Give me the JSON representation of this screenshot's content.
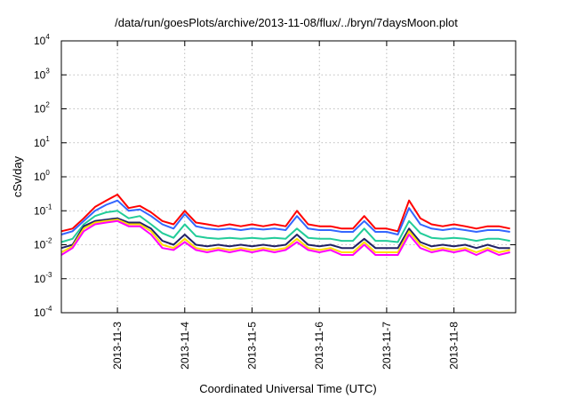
{
  "chart_data": {
    "type": "line",
    "title": "/data/run/goesPlots/archive/2013-11-08/flux/../bryn/7daysMoon.plot",
    "xlabel": "Coordinated Universal Time (UTC)",
    "ylabel": "cSv/day",
    "yscale": "log",
    "ylim": [
      0.0001,
      10000
    ],
    "y_ticks": [
      {
        "base": "10",
        "exp": "4",
        "value": 10000
      },
      {
        "base": "10",
        "exp": "3",
        "value": 1000
      },
      {
        "base": "10",
        "exp": "2",
        "value": 100
      },
      {
        "base": "10",
        "exp": "1",
        "value": 10
      },
      {
        "base": "10",
        "exp": "0",
        "value": 1
      },
      {
        "base": "10",
        "exp": "-1",
        "value": 0.1
      },
      {
        "base": "10",
        "exp": "-2",
        "value": 0.01
      },
      {
        "base": "10",
        "exp": "-3",
        "value": 0.001
      },
      {
        "base": "10",
        "exp": "-4",
        "value": 0.0001
      }
    ],
    "xlim": [
      "2013-11-02T04:00",
      "2013-11-08T22:00"
    ],
    "x_ticks": [
      {
        "label": "2013-11-3",
        "value": "2013-11-03T00:00"
      },
      {
        "label": "2013-11-4",
        "value": "2013-11-04T00:00"
      },
      {
        "label": "2013-11-5",
        "value": "2013-11-05T00:00"
      },
      {
        "label": "2013-11-6",
        "value": "2013-11-06T00:00"
      },
      {
        "label": "2013-11-7",
        "value": "2013-11-07T00:00"
      },
      {
        "label": "2013-11-8",
        "value": "2013-11-08T00:00"
      }
    ],
    "grid": true,
    "legend": "none",
    "x": [
      "2013-11-02T04:00",
      "2013-11-02T08:00",
      "2013-11-02T12:00",
      "2013-11-02T16:00",
      "2013-11-02T20:00",
      "2013-11-03T00:00",
      "2013-11-03T04:00",
      "2013-11-03T08:00",
      "2013-11-03T12:00",
      "2013-11-03T16:00",
      "2013-11-03T20:00",
      "2013-11-04T00:00",
      "2013-11-04T04:00",
      "2013-11-04T08:00",
      "2013-11-04T12:00",
      "2013-11-04T16:00",
      "2013-11-04T20:00",
      "2013-11-05T00:00",
      "2013-11-05T04:00",
      "2013-11-05T08:00",
      "2013-11-05T12:00",
      "2013-11-05T16:00",
      "2013-11-05T20:00",
      "2013-11-06T00:00",
      "2013-11-06T04:00",
      "2013-11-06T08:00",
      "2013-11-06T12:00",
      "2013-11-06T16:00",
      "2013-11-06T20:00",
      "2013-11-07T00:00",
      "2013-11-07T04:00",
      "2013-11-07T08:00",
      "2013-11-07T12:00",
      "2013-11-07T16:00",
      "2013-11-07T20:00",
      "2013-11-08T00:00",
      "2013-11-08T04:00",
      "2013-11-08T08:00",
      "2013-11-08T12:00",
      "2013-11-08T16:00",
      "2013-11-08T20:00"
    ],
    "series": [
      {
        "color": "#ff0000",
        "values": [
          0.025,
          0.03,
          0.06,
          0.13,
          0.2,
          0.3,
          0.12,
          0.14,
          0.09,
          0.05,
          0.04,
          0.1,
          0.045,
          0.04,
          0.035,
          0.04,
          0.035,
          0.04,
          0.035,
          0.04,
          0.035,
          0.1,
          0.04,
          0.035,
          0.035,
          0.03,
          0.03,
          0.07,
          0.03,
          0.03,
          0.025,
          0.2,
          0.06,
          0.04,
          0.035,
          0.04,
          0.035,
          0.03,
          0.035,
          0.035,
          0.03
        ]
      },
      {
        "color": "#3366ff",
        "values": [
          0.02,
          0.025,
          0.05,
          0.1,
          0.15,
          0.2,
          0.1,
          0.11,
          0.07,
          0.04,
          0.03,
          0.08,
          0.035,
          0.03,
          0.028,
          0.03,
          0.027,
          0.03,
          0.028,
          0.03,
          0.027,
          0.07,
          0.03,
          0.027,
          0.027,
          0.024,
          0.024,
          0.05,
          0.024,
          0.024,
          0.02,
          0.12,
          0.04,
          0.03,
          0.027,
          0.03,
          0.027,
          0.024,
          0.027,
          0.027,
          0.024
        ]
      },
      {
        "color": "#22cc99",
        "values": [
          0.012,
          0.015,
          0.04,
          0.07,
          0.09,
          0.1,
          0.06,
          0.07,
          0.04,
          0.022,
          0.016,
          0.04,
          0.018,
          0.016,
          0.015,
          0.016,
          0.015,
          0.016,
          0.015,
          0.016,
          0.015,
          0.03,
          0.016,
          0.015,
          0.015,
          0.013,
          0.013,
          0.03,
          0.013,
          0.013,
          0.012,
          0.05,
          0.022,
          0.016,
          0.015,
          0.016,
          0.015,
          0.013,
          0.015,
          0.015,
          0.013
        ]
      },
      {
        "color": "#222266",
        "values": [
          0.008,
          0.01,
          0.035,
          0.05,
          0.055,
          0.06,
          0.045,
          0.045,
          0.03,
          0.013,
          0.01,
          0.02,
          0.01,
          0.009,
          0.01,
          0.009,
          0.01,
          0.009,
          0.01,
          0.009,
          0.01,
          0.02,
          0.01,
          0.009,
          0.01,
          0.008,
          0.008,
          0.015,
          0.008,
          0.008,
          0.008,
          0.03,
          0.012,
          0.009,
          0.01,
          0.009,
          0.01,
          0.008,
          0.01,
          0.008,
          0.008
        ]
      },
      {
        "color": "#ffdd00",
        "values": [
          0.006,
          0.009,
          0.03,
          0.045,
          0.05,
          0.055,
          0.04,
          0.04,
          0.025,
          0.01,
          0.008,
          0.015,
          0.008,
          0.007,
          0.008,
          0.007,
          0.008,
          0.007,
          0.008,
          0.007,
          0.008,
          0.015,
          0.008,
          0.007,
          0.008,
          0.006,
          0.006,
          0.012,
          0.006,
          0.006,
          0.006,
          0.025,
          0.01,
          0.007,
          0.008,
          0.007,
          0.008,
          0.006,
          0.008,
          0.006,
          0.007
        ]
      },
      {
        "color": "#ff00ff",
        "values": [
          0.005,
          0.008,
          0.025,
          0.04,
          0.045,
          0.05,
          0.035,
          0.035,
          0.02,
          0.008,
          0.007,
          0.012,
          0.007,
          0.006,
          0.007,
          0.006,
          0.007,
          0.006,
          0.007,
          0.006,
          0.007,
          0.012,
          0.007,
          0.006,
          0.007,
          0.005,
          0.005,
          0.01,
          0.005,
          0.005,
          0.005,
          0.02,
          0.008,
          0.006,
          0.007,
          0.006,
          0.007,
          0.005,
          0.007,
          0.005,
          0.006
        ]
      }
    ]
  }
}
